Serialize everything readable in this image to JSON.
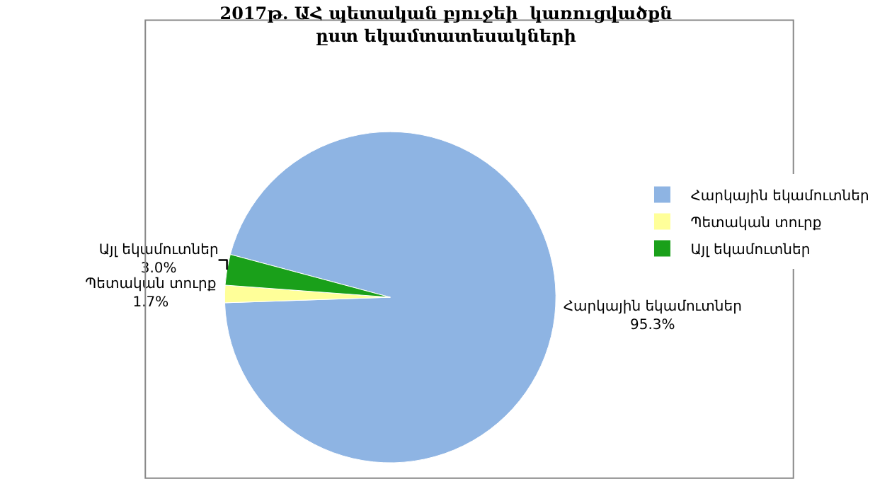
{
  "chart_data": {
    "type": "pie",
    "title": "2017թ. ԱՀ պետական բյուջեի  կառուցվածքն\nըստ եկամտատեսակների",
    "categories": [
      "Հարկային եկամուտներ",
      "Պետական տուրք",
      "Այլ եկամուտներ"
    ],
    "values": [
      95.3,
      1.7,
      3.0
    ],
    "value_labels": [
      "95.3%",
      "1.7%",
      "3.0%"
    ],
    "colors": [
      "#8eb4e3",
      "#ffff99",
      "#1aa01a"
    ],
    "legend": "right"
  }
}
